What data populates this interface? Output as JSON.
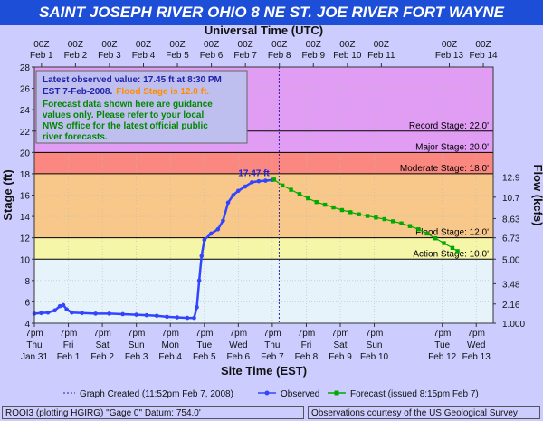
{
  "title": "SAINT JOSEPH RIVER OHIO 8 NE ST. JOE RIVER FORT WAYNE",
  "colors": {
    "title_bg": "#1D4ED8",
    "observed": "#3344FF",
    "forecast": "#00AA00",
    "accent": "#2222AA"
  },
  "chart_data": {
    "type": "line",
    "top_axis_label": "Universal Time (UTC)",
    "top_ticks": [
      {
        "day": 0.2083,
        "l1": "00Z",
        "l2": "Feb 1"
      },
      {
        "day": 1.2083,
        "l1": "00Z",
        "l2": "Feb 2"
      },
      {
        "day": 2.2083,
        "l1": "00Z",
        "l2": "Feb 3"
      },
      {
        "day": 3.2083,
        "l1": "00Z",
        "l2": "Feb 4"
      },
      {
        "day": 4.2083,
        "l1": "00Z",
        "l2": "Feb 5"
      },
      {
        "day": 5.2083,
        "l1": "00Z",
        "l2": "Feb 6"
      },
      {
        "day": 6.2083,
        "l1": "00Z",
        "l2": "Feb 7"
      },
      {
        "day": 7.2083,
        "l1": "00Z",
        "l2": "Feb 8"
      },
      {
        "day": 8.2083,
        "l1": "00Z",
        "l2": "Feb 9"
      },
      {
        "day": 9.2083,
        "l1": "00Z",
        "l2": "Feb 10"
      },
      {
        "day": 10.2083,
        "l1": "00Z",
        "l2": "Feb 11"
      },
      {
        "day": 12.2083,
        "l1": "00Z",
        "l2": "Feb 13"
      },
      {
        "day": 13.2083,
        "l1": "00Z",
        "l2": "Feb 14"
      }
    ],
    "bottom_axis_label": "Site Time (EST)",
    "bottom_ticks": [
      {
        "day": 0,
        "l1": "7pm",
        "l2": "Thu",
        "l3": "Jan 31"
      },
      {
        "day": 1,
        "l1": "7pm",
        "l2": "Fri",
        "l3": "Feb 1"
      },
      {
        "day": 2,
        "l1": "7pm",
        "l2": "Sat",
        "l3": "Feb 2"
      },
      {
        "day": 3,
        "l1": "7pm",
        "l2": "Sun",
        "l3": "Feb 3"
      },
      {
        "day": 4,
        "l1": "7pm",
        "l2": "Mon",
        "l3": "Feb 4"
      },
      {
        "day": 5,
        "l1": "7pm",
        "l2": "Tue",
        "l3": "Feb 5"
      },
      {
        "day": 6,
        "l1": "7pm",
        "l2": "Wed",
        "l3": "Feb 6"
      },
      {
        "day": 7,
        "l1": "7pm",
        "l2": "Thu",
        "l3": "Feb 7"
      },
      {
        "day": 8,
        "l1": "7pm",
        "l2": "Fri",
        "l3": "Feb 8"
      },
      {
        "day": 9,
        "l1": "7pm",
        "l2": "Sat",
        "l3": "Feb 9"
      },
      {
        "day": 10,
        "l1": "7pm",
        "l2": "Sun",
        "l3": "Feb 10"
      },
      {
        "day": 12,
        "l1": "7pm",
        "l2": "Tue",
        "l3": "Feb 12"
      },
      {
        "day": 13,
        "l1": "7pm",
        "l2": "Wed",
        "l3": "Feb 13"
      }
    ],
    "xlim": [
      0,
      13.5
    ],
    "ylabel": "Stage (ft)",
    "ylim": [
      4,
      28
    ],
    "y_ticks": [
      4,
      6,
      8,
      10,
      12,
      14,
      16,
      18,
      20,
      22,
      24,
      26,
      28
    ],
    "y2label": "Flow (kcfs)",
    "y2_ticks": [
      {
        "stage": 4,
        "label": "1.000"
      },
      {
        "stage": 5.8,
        "label": "2.16"
      },
      {
        "stage": 7.7,
        "label": "3.48"
      },
      {
        "stage": 10,
        "label": "5.00"
      },
      {
        "stage": 12,
        "label": "6.73"
      },
      {
        "stage": 13.8,
        "label": "8.63"
      },
      {
        "stage": 15.8,
        "label": "10.7"
      },
      {
        "stage": 17.7,
        "label": "12.9"
      }
    ],
    "stages": [
      {
        "name": "Record Stage",
        "label": "Record Stage: 22.0'",
        "value": 22.0
      },
      {
        "name": "Major Stage",
        "label": "Major Stage: 20.0'",
        "value": 20.0
      },
      {
        "name": "Moderate Stage",
        "label": "Moderate Stage: 18.0'",
        "value": 18.0
      },
      {
        "name": "Flood Stage",
        "label": "Flood Stage: 12.0'",
        "value": 12.0
      },
      {
        "name": "Action Stage",
        "label": "Action Stage: 10.0'",
        "value": 10.0
      }
    ],
    "bands": [
      {
        "from": 4,
        "to": 10,
        "color": "#E6F3FB"
      },
      {
        "from": 10,
        "to": 12,
        "color": "#F6F6A8"
      },
      {
        "from": 12,
        "to": 18,
        "color": "#F8C88A"
      },
      {
        "from": 18,
        "to": 20,
        "color": "#FB8880"
      },
      {
        "from": 20,
        "to": 28,
        "color": "#E19CF4"
      }
    ],
    "series": [
      {
        "name": "Observed",
        "color": "#3344FF",
        "points": [
          [
            0,
            4.9
          ],
          [
            0.2,
            4.95
          ],
          [
            0.4,
            5.0
          ],
          [
            0.6,
            5.2
          ],
          [
            0.75,
            5.6
          ],
          [
            0.85,
            5.7
          ],
          [
            0.95,
            5.3
          ],
          [
            1.1,
            5.0
          ],
          [
            1.4,
            4.95
          ],
          [
            1.8,
            4.9
          ],
          [
            2.2,
            4.9
          ],
          [
            2.6,
            4.85
          ],
          [
            3.0,
            4.8
          ],
          [
            3.3,
            4.75
          ],
          [
            3.6,
            4.7
          ],
          [
            3.9,
            4.6
          ],
          [
            4.2,
            4.55
          ],
          [
            4.5,
            4.5
          ],
          [
            4.7,
            4.5
          ],
          [
            4.78,
            5.5
          ],
          [
            4.85,
            8.0
          ],
          [
            4.92,
            10.3
          ],
          [
            5.0,
            11.8
          ],
          [
            5.2,
            12.4
          ],
          [
            5.4,
            12.8
          ],
          [
            5.55,
            13.6
          ],
          [
            5.7,
            15.3
          ],
          [
            5.85,
            16.0
          ],
          [
            6.0,
            16.4
          ],
          [
            6.2,
            16.8
          ],
          [
            6.4,
            17.2
          ],
          [
            6.6,
            17.3
          ],
          [
            6.8,
            17.35
          ],
          [
            7.0,
            17.42
          ],
          [
            7.05,
            17.45
          ]
        ]
      },
      {
        "name": "Forecast (issued 8:15pm Feb 7)",
        "color": "#00AA00",
        "points": [
          [
            7.05,
            17.45
          ],
          [
            7.3,
            16.9
          ],
          [
            7.55,
            16.5
          ],
          [
            7.8,
            16.1
          ],
          [
            8.05,
            15.7
          ],
          [
            8.3,
            15.35
          ],
          [
            8.55,
            15.1
          ],
          [
            8.8,
            14.85
          ],
          [
            9.05,
            14.6
          ],
          [
            9.3,
            14.4
          ],
          [
            9.55,
            14.2
          ],
          [
            9.8,
            14.05
          ],
          [
            10.05,
            13.9
          ],
          [
            10.3,
            13.75
          ],
          [
            10.55,
            13.55
          ],
          [
            10.8,
            13.35
          ],
          [
            11.05,
            13.1
          ],
          [
            11.3,
            12.8
          ],
          [
            11.55,
            12.4
          ],
          [
            11.8,
            11.95
          ],
          [
            12.05,
            11.5
          ],
          [
            12.3,
            11.05
          ],
          [
            12.45,
            10.75
          ]
        ]
      }
    ],
    "peak_label": "17.47 ft",
    "now_marker_day": 7.2,
    "legend": [
      {
        "key": "created",
        "label": "Graph Created (11:52pm Feb 7, 2008)"
      },
      {
        "key": "observed",
        "label": "Observed"
      },
      {
        "key": "forecast",
        "label": "Forecast (issued 8:15pm Feb 7)"
      }
    ]
  },
  "info_box": {
    "line1": "Latest observed value: 17.45 ft at 8:30 PM",
    "line2a": "EST 7-Feb-2008.",
    "line2b": "Flood Stage is 12.0 ft.",
    "body": [
      "Forecast data shown here are guidance",
      "values only. Please refer to your local",
      "NWS office for the latest official public",
      "river forecasts."
    ]
  },
  "footer": {
    "left": "ROOI3 (plotting HGIRG)  \"Gage 0\" Datum: 754.0'",
    "right": "Observations courtesy of the  US Geological Survey"
  }
}
